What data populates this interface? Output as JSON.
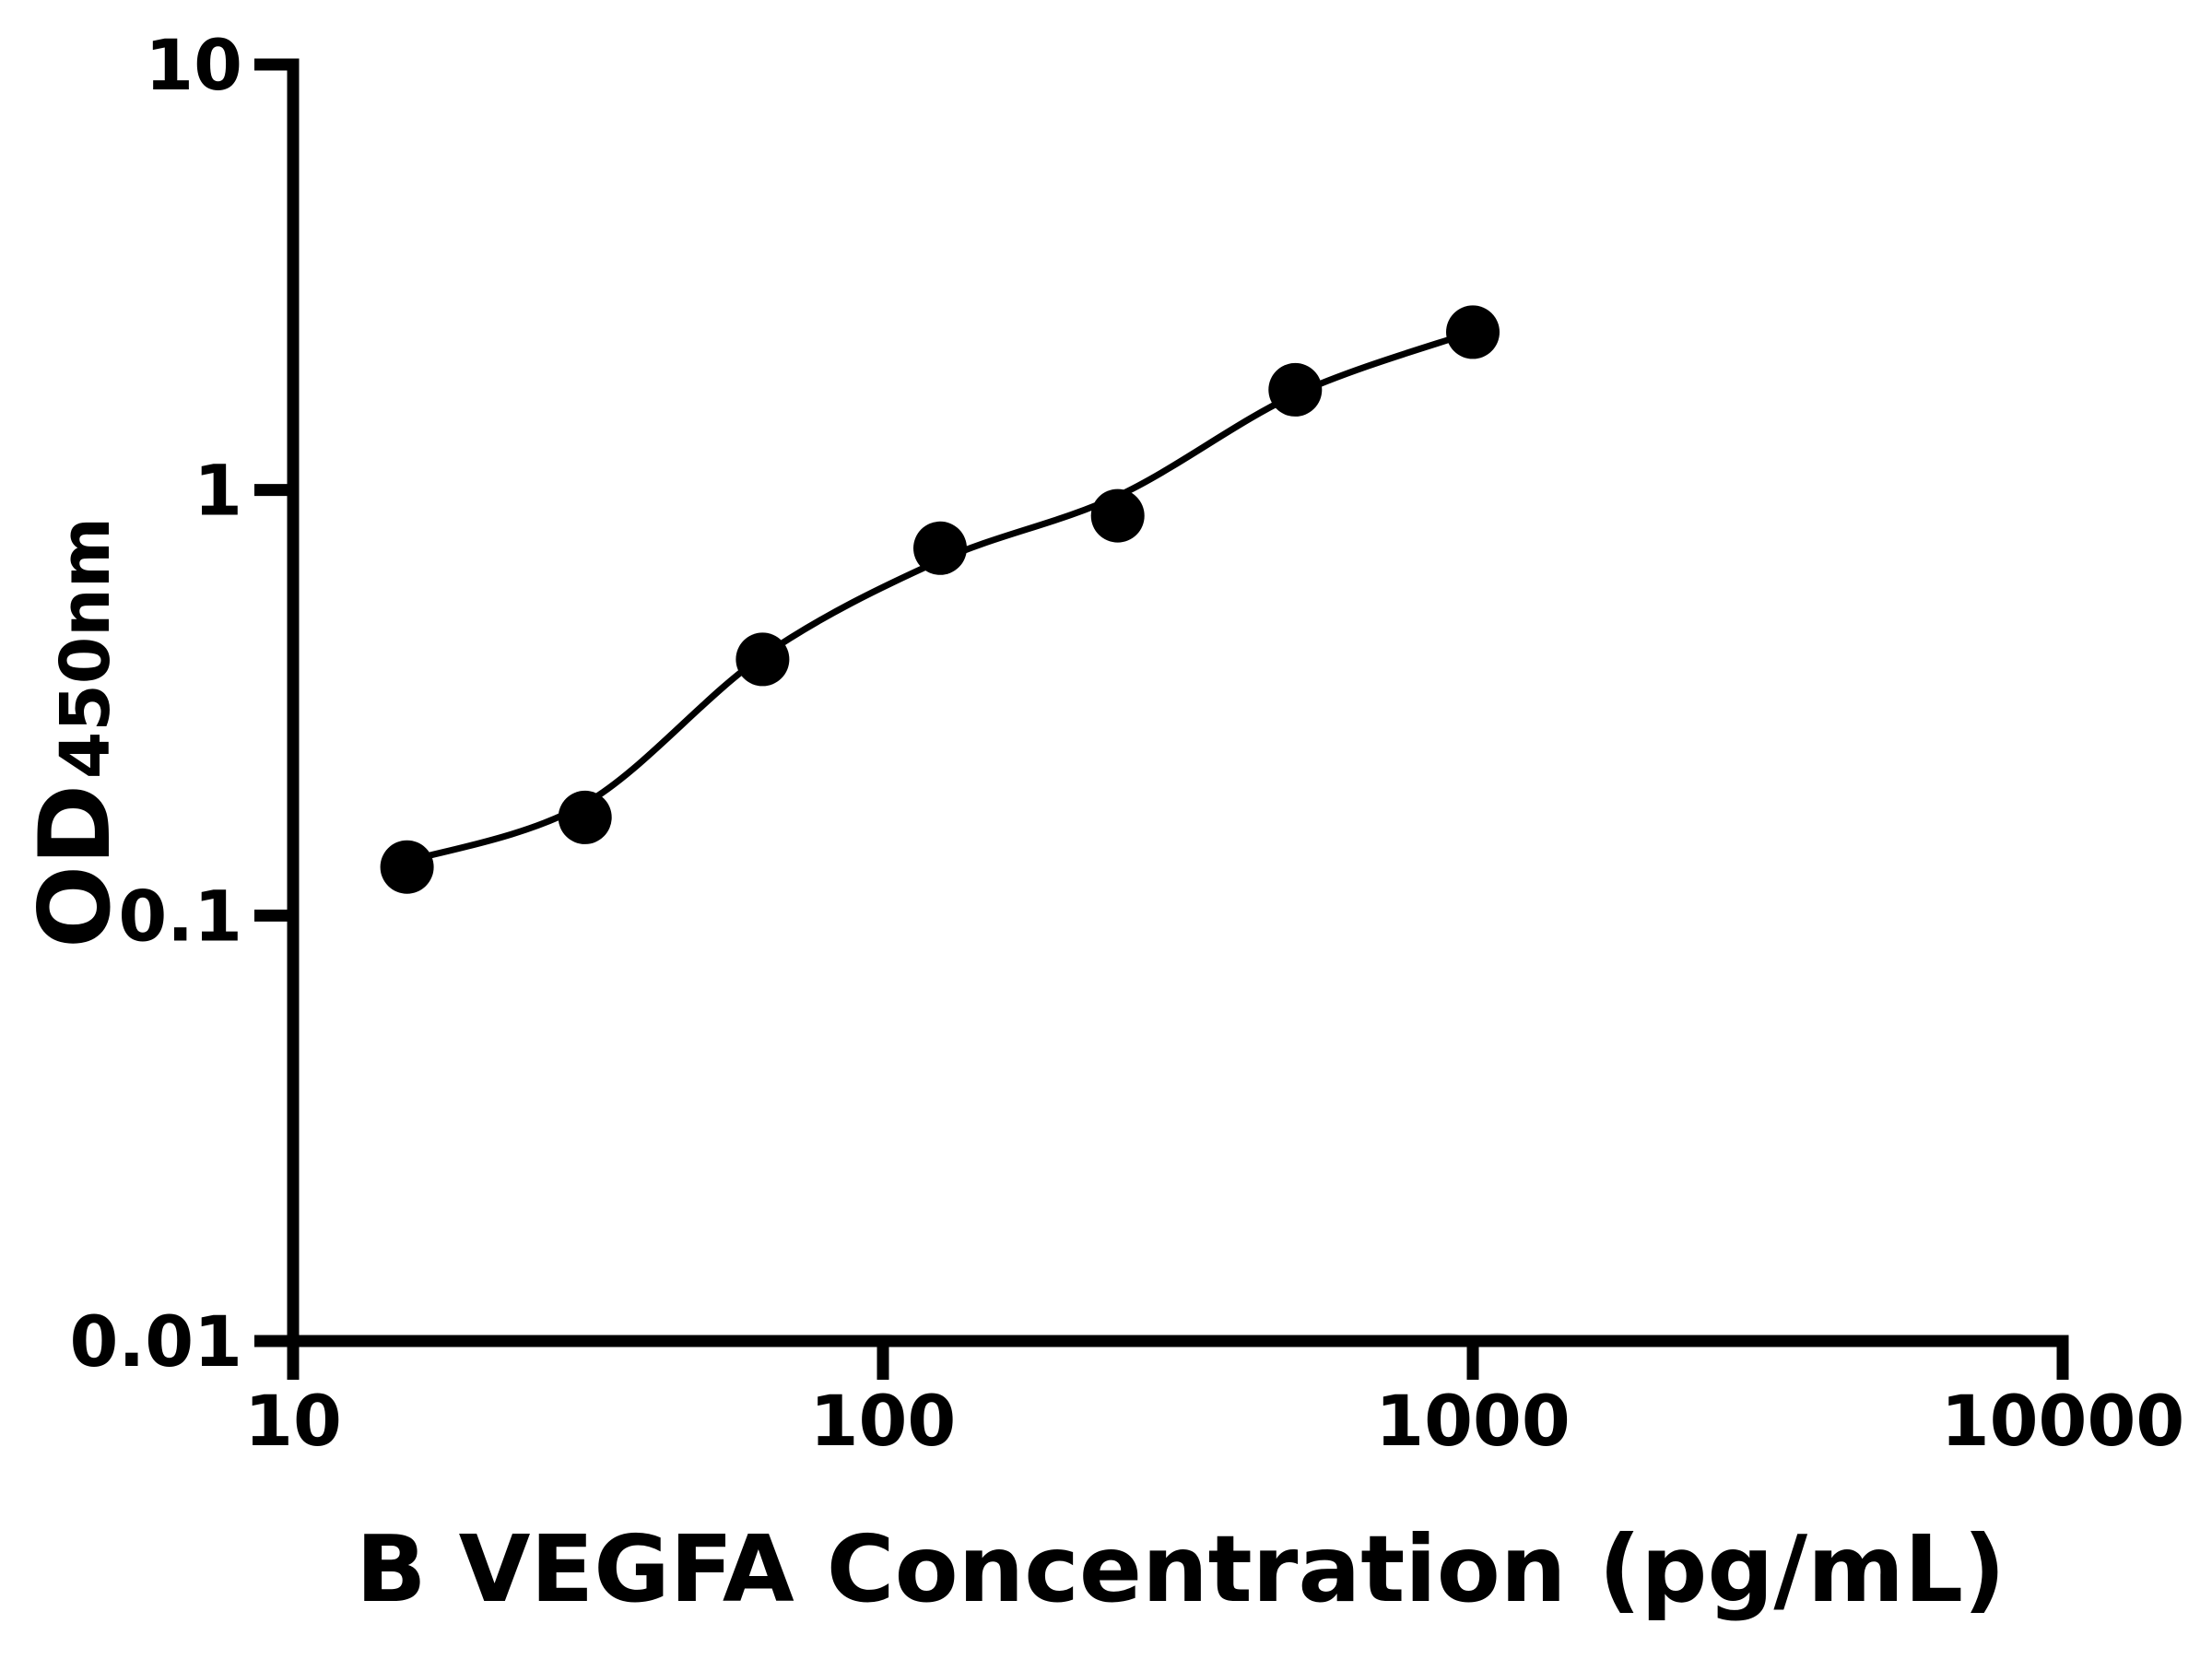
{
  "chart_data": {
    "type": "scatter",
    "title": "",
    "xlabel": "B VEGFA Concentration (pg/mL)",
    "ylabel_main": "OD",
    "ylabel_sub": "450nm",
    "x_scale": "log",
    "y_scale": "log",
    "xlim": [
      10,
      10000
    ],
    "ylim": [
      0.01,
      10
    ],
    "grid": false,
    "legend": false,
    "background_color": "#ffffff",
    "axis_color": "#000000",
    "marker_color": "#000000",
    "line_color": "#000000",
    "x_ticks": [
      {
        "value": 10,
        "label": "10"
      },
      {
        "value": 100,
        "label": "100"
      },
      {
        "value": 1000,
        "label": "1000"
      },
      {
        "value": 10000,
        "label": "10000"
      }
    ],
    "y_ticks": [
      {
        "value": 10,
        "label": "10"
      },
      {
        "value": 1,
        "label": "1"
      },
      {
        "value": 0.1,
        "label": "0.1"
      },
      {
        "value": 0.01,
        "label": "0.01"
      }
    ],
    "series": [
      {
        "name": "standard-points",
        "marker": "circle",
        "x": [
          15.6,
          31.25,
          62.5,
          125,
          250,
          500,
          1000
        ],
        "y": [
          0.13,
          0.17,
          0.4,
          0.73,
          0.87,
          1.72,
          2.35
        ]
      }
    ],
    "fit_curve": {
      "name": "fitted-standard-curve",
      "x": [
        15.6,
        31.25,
        62.5,
        125,
        250,
        500,
        1000
      ],
      "y": [
        0.134,
        0.183,
        0.407,
        0.683,
        0.968,
        1.676,
        2.354
      ]
    }
  }
}
